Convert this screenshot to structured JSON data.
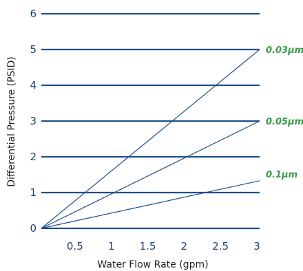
{
  "chart_data": {
    "type": "line",
    "title": "",
    "xlabel": "Water Flow Rate (gpm)",
    "ylabel": "Differential Pressure (PSID)",
    "xlim": [
      0,
      3
    ],
    "ylim": [
      0,
      6
    ],
    "x_ticks": [
      "0.5",
      "1",
      "1.5",
      "2",
      "2.5",
      "3"
    ],
    "x_tick_values": [
      0.5,
      1,
      1.5,
      2,
      2.5,
      3
    ],
    "y_ticks": [
      "0",
      "1",
      "2",
      "3",
      "4",
      "5",
      "6"
    ],
    "y_tick_values": [
      0,
      1,
      2,
      3,
      4,
      5,
      6
    ],
    "grid": "horizontal",
    "series": [
      {
        "name": "0.03µm",
        "x": [
          0,
          3
        ],
        "y": [
          0,
          5.0
        ]
      },
      {
        "name": "0.05µm",
        "x": [
          0,
          3
        ],
        "y": [
          0,
          3.0
        ]
      },
      {
        "name": "0.1µm",
        "x": [
          0,
          3
        ],
        "y": [
          0,
          1.33
        ]
      }
    ],
    "colors": {
      "grid": "#1f4e8c",
      "series_line": "#1f4e8c",
      "series_label": "#3a9a4b",
      "tick_label": "#1f3f73"
    }
  }
}
